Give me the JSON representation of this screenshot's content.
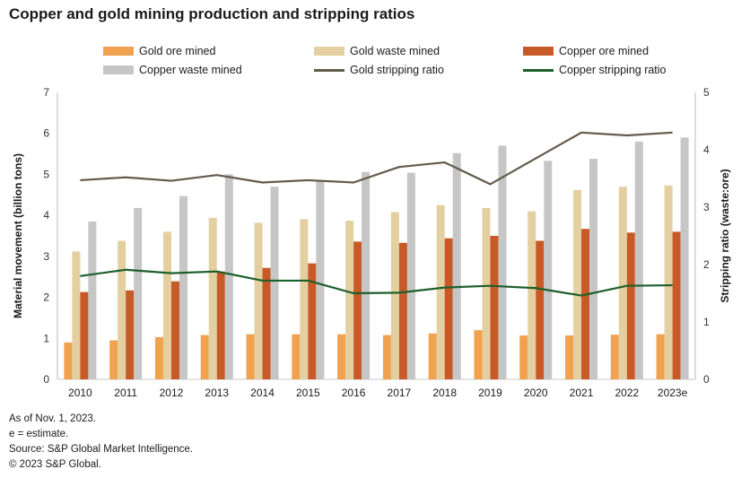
{
  "title": "Copper and gold mining production and stripping ratios",
  "footnotes": [
    "As of Nov. 1, 2023.",
    "e = estimate.",
    "Source: S&P Global Market Intelligence.",
    "© 2023 S&P Global."
  ],
  "chart_data": {
    "type": "bar",
    "subtype": "grouped bars with overlay lines, dual y-axes",
    "categories": [
      "2010",
      "2011",
      "2012",
      "2013",
      "2014",
      "2015",
      "2016",
      "2017",
      "2018",
      "2019",
      "2020",
      "2021",
      "2022",
      "2023e"
    ],
    "bar_series": [
      {
        "name": "Gold ore mined",
        "axis": "left",
        "color": "#F0A24E",
        "values": [
          0.9,
          0.95,
          1.03,
          1.08,
          1.1,
          1.1,
          1.1,
          1.08,
          1.12,
          1.2,
          1.07,
          1.07,
          1.09,
          1.1
        ]
      },
      {
        "name": "Gold waste mined",
        "axis": "left",
        "color": "#E4CFA1",
        "values": [
          3.12,
          3.38,
          3.6,
          3.94,
          3.82,
          3.91,
          3.87,
          4.08,
          4.25,
          4.18,
          4.1,
          4.62,
          4.7,
          4.73
        ]
      },
      {
        "name": "Copper ore mined",
        "axis": "left",
        "color": "#C75A26",
        "values": [
          2.13,
          2.17,
          2.39,
          2.63,
          2.72,
          2.83,
          3.36,
          3.33,
          3.44,
          3.5,
          3.38,
          3.67,
          3.58,
          3.6
        ]
      },
      {
        "name": "Copper waste mined",
        "axis": "left",
        "color": "#C6C6C6",
        "values": [
          3.85,
          4.18,
          4.47,
          5.0,
          4.7,
          4.84,
          5.06,
          5.04,
          5.52,
          5.7,
          5.33,
          5.38,
          5.8,
          5.9
        ]
      }
    ],
    "line_series": [
      {
        "name": "Gold stripping ratio",
        "axis": "right",
        "color": "#645A4B",
        "values": [
          3.47,
          3.52,
          3.46,
          3.56,
          3.43,
          3.47,
          3.43,
          3.7,
          3.78,
          3.4,
          3.85,
          4.3,
          4.25,
          4.3
        ]
      },
      {
        "name": "Copper stripping ratio",
        "axis": "right",
        "color": "#1D5F2A",
        "values": [
          1.8,
          1.91,
          1.85,
          1.88,
          1.72,
          1.72,
          1.5,
          1.51,
          1.6,
          1.63,
          1.59,
          1.46,
          1.63,
          1.64
        ]
      }
    ],
    "left_axis": {
      "label": "Material movement (billion tons)",
      "min": 0,
      "max": 7,
      "ticks": [
        0,
        1,
        2,
        3,
        4,
        5,
        6,
        7
      ]
    },
    "right_axis": {
      "label": "Stripping ratio (waste:ore)",
      "min": 0,
      "max": 5,
      "ticks": [
        0,
        1,
        2,
        3,
        4,
        5
      ]
    },
    "grid": false,
    "legend_position": "top",
    "axis_line_color": "#DCDCDC",
    "text_color": "#333333"
  }
}
